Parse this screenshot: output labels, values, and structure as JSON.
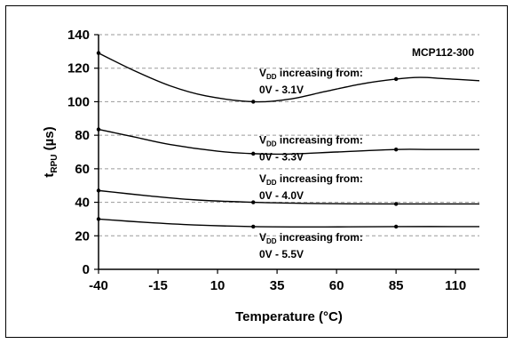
{
  "chart_data": {
    "type": "line",
    "title": "",
    "xlabel": "Temperature (°C)",
    "ylabel": "tRPU (µs)",
    "xlim": [
      -40,
      120
    ],
    "ylim": [
      0,
      140
    ],
    "x_ticks": [
      -40,
      -15,
      10,
      35,
      60,
      85,
      110
    ],
    "y_ticks": [
      0,
      20,
      40,
      60,
      80,
      100,
      120,
      140
    ],
    "grid": "horizontal dashed",
    "annotation": "MCP112-300",
    "series": [
      {
        "name": "VDD increasing from: 0V - 3.1V",
        "label_line1": "V",
        "label_sub": "DD",
        "label_rest": " increasing from:",
        "label_line2": "0V - 3.1V",
        "markers": [
          {
            "x": -40,
            "y": 129
          },
          {
            "x": 25,
            "y": 100
          },
          {
            "x": 85,
            "y": 113.5
          }
        ],
        "curve": [
          [
            -40,
            129
          ],
          [
            -25,
            118.5
          ],
          [
            -10,
            109.5
          ],
          [
            5,
            103.5
          ],
          [
            25,
            100
          ],
          [
            40,
            101.5
          ],
          [
            55,
            106
          ],
          [
            70,
            110.5
          ],
          [
            85,
            113.5
          ],
          [
            95,
            114.5
          ],
          [
            105,
            113.8
          ],
          [
            120,
            112.5
          ]
        ]
      },
      {
        "name": "VDD increasing from: 0V - 3.3V",
        "label_line1": "V",
        "label_sub": "DD",
        "label_rest": " increasing from:",
        "label_line2": "0V - 3.3V",
        "markers": [
          {
            "x": -40,
            "y": 83.5
          },
          {
            "x": 25,
            "y": 69
          },
          {
            "x": 85,
            "y": 71.5
          }
        ],
        "curve": [
          [
            -40,
            83.5
          ],
          [
            -25,
            79
          ],
          [
            -10,
            74.5
          ],
          [
            10,
            70.5
          ],
          [
            25,
            69
          ],
          [
            40,
            68.8
          ],
          [
            60,
            70
          ],
          [
            85,
            71.5
          ],
          [
            100,
            71.5
          ],
          [
            120,
            71.5
          ]
        ]
      },
      {
        "name": "VDD increasing from: 0V - 4.0V",
        "label_line1": "V",
        "label_sub": "DD",
        "label_rest": " increasing from:",
        "label_line2": "0V - 4.0V",
        "markers": [
          {
            "x": -40,
            "y": 47
          },
          {
            "x": 25,
            "y": 40
          },
          {
            "x": 85,
            "y": 39
          }
        ],
        "curve": [
          [
            -40,
            47
          ],
          [
            -20,
            44
          ],
          [
            0,
            41.5
          ],
          [
            25,
            40
          ],
          [
            55,
            39.2
          ],
          [
            85,
            39
          ],
          [
            120,
            39
          ]
        ]
      },
      {
        "name": "VDD increasing from: 0V - 5.5V",
        "label_line1": "V",
        "label_sub": "DD",
        "label_rest": " increasing from:",
        "label_line2": "0V - 5.5V",
        "markers": [
          {
            "x": -40,
            "y": 30
          },
          {
            "x": 25,
            "y": 25.5
          },
          {
            "x": 85,
            "y": 25.5
          }
        ],
        "curve": [
          [
            -40,
            30
          ],
          [
            -20,
            28
          ],
          [
            0,
            26.5
          ],
          [
            25,
            25.5
          ],
          [
            55,
            25.3
          ],
          [
            85,
            25.5
          ],
          [
            120,
            25.5
          ]
        ]
      }
    ]
  }
}
